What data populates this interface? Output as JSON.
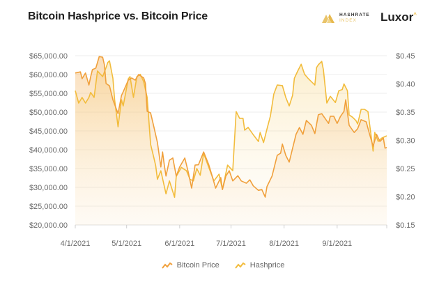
{
  "header": {
    "title": "Bitcoin Hashprice vs. Bitcoin Price",
    "logo_hashrate_line1": "HASHRATE",
    "logo_hashrate_line2": "INDEX",
    "logo_luxor": "Luxor"
  },
  "chart_data": {
    "type": "line",
    "title": "Bitcoin Hashprice vs. Bitcoin Price",
    "xlabel": "",
    "ylabel": "",
    "y2label": "",
    "x_ticks": [
      "4/1/2021",
      "5/1/2021",
      "6/1/2021",
      "7/1/2021",
      "8/1/2021",
      "9/1/2021"
    ],
    "y_ticks": [
      "$65,000.00",
      "$60,000.00",
      "$55,000.00",
      "$50,000.00",
      "$45,000.00",
      "$40,000.00",
      "$35,000.00",
      "$30,000.00",
      "$25,000.00",
      "$20,000.00"
    ],
    "y2_ticks": [
      "$0.45",
      "$0.40",
      "$0.35",
      "$0.30",
      "$0.25",
      "$0.20",
      "$0.15"
    ],
    "xlim": [
      "2021-04-01",
      "2021-09-30"
    ],
    "ylim": [
      20000,
      65000
    ],
    "y2lim": [
      0.15,
      0.45
    ],
    "grid": true,
    "legend_position": "bottom",
    "series": [
      {
        "name": "Bitcoin Price",
        "axis": "left",
        "color": "#f0a03c",
        "points": [
          [
            "2021-04-01",
            60400
          ],
          [
            "2021-04-04",
            60700
          ],
          [
            "2021-04-05",
            58900
          ],
          [
            "2021-04-07",
            60400
          ],
          [
            "2021-04-09",
            57200
          ],
          [
            "2021-04-10",
            59400
          ],
          [
            "2021-04-11",
            61300
          ],
          [
            "2021-04-13",
            61700
          ],
          [
            "2021-04-15",
            64800
          ],
          [
            "2021-04-17",
            64600
          ],
          [
            "2021-04-18",
            62600
          ],
          [
            "2021-04-19",
            57600
          ],
          [
            "2021-04-21",
            57000
          ],
          [
            "2021-04-23",
            53300
          ],
          [
            "2021-04-26",
            49600
          ],
          [
            "2021-04-28",
            54400
          ],
          [
            "2021-04-29",
            55400
          ],
          [
            "2021-05-02",
            58500
          ],
          [
            "2021-05-04",
            59100
          ],
          [
            "2021-05-06",
            58500
          ],
          [
            "2021-05-08",
            60000
          ],
          [
            "2021-05-11",
            59100
          ],
          [
            "2021-05-12",
            57600
          ],
          [
            "2021-05-13",
            50200
          ],
          [
            "2021-05-15",
            49800
          ],
          [
            "2021-05-17",
            45900
          ],
          [
            "2021-05-19",
            41900
          ],
          [
            "2021-05-21",
            35400
          ],
          [
            "2021-05-22",
            39400
          ],
          [
            "2021-05-23",
            36000
          ],
          [
            "2021-05-24",
            33000
          ],
          [
            "2021-05-26",
            37200
          ],
          [
            "2021-05-28",
            37800
          ],
          [
            "2021-05-30",
            33000
          ],
          [
            "2021-06-01",
            35400
          ],
          [
            "2021-06-04",
            37800
          ],
          [
            "2021-06-06",
            34100
          ],
          [
            "2021-06-08",
            29800
          ],
          [
            "2021-06-10",
            35900
          ],
          [
            "2021-06-12",
            36000
          ],
          [
            "2021-06-15",
            39400
          ],
          [
            "2021-06-18",
            36000
          ],
          [
            "2021-06-20",
            33000
          ],
          [
            "2021-06-22",
            29800
          ],
          [
            "2021-06-25",
            32600
          ],
          [
            "2021-06-26",
            29400
          ],
          [
            "2021-06-28",
            33000
          ],
          [
            "2021-06-30",
            34400
          ],
          [
            "2021-07-02",
            31700
          ],
          [
            "2021-07-05",
            33100
          ],
          [
            "2021-07-07",
            31700
          ],
          [
            "2021-07-10",
            31100
          ],
          [
            "2021-07-12",
            32000
          ],
          [
            "2021-07-14",
            30400
          ],
          [
            "2021-07-17",
            29200
          ],
          [
            "2021-07-19",
            29400
          ],
          [
            "2021-07-21",
            27400
          ],
          [
            "2021-07-22",
            30200
          ],
          [
            "2021-07-25",
            33000
          ],
          [
            "2021-07-28",
            38500
          ],
          [
            "2021-07-30",
            39100
          ],
          [
            "2021-07-31",
            41500
          ],
          [
            "2021-08-02",
            38500
          ],
          [
            "2021-08-04",
            36700
          ],
          [
            "2021-08-06",
            40400
          ],
          [
            "2021-08-08",
            44100
          ],
          [
            "2021-08-10",
            45900
          ],
          [
            "2021-08-12",
            44100
          ],
          [
            "2021-08-14",
            47800
          ],
          [
            "2021-08-17",
            46500
          ],
          [
            "2021-08-19",
            44300
          ],
          [
            "2021-08-21",
            49300
          ],
          [
            "2021-08-23",
            49600
          ],
          [
            "2021-08-25",
            48300
          ],
          [
            "2021-08-27",
            47000
          ],
          [
            "2021-08-28",
            48900
          ],
          [
            "2021-08-30",
            48900
          ],
          [
            "2021-09-01",
            47000
          ],
          [
            "2021-09-03",
            48900
          ],
          [
            "2021-09-05",
            50200
          ],
          [
            "2021-09-06",
            53300
          ],
          [
            "2021-09-08",
            46500
          ],
          [
            "2021-09-10",
            45200
          ],
          [
            "2021-09-11",
            44600
          ],
          [
            "2021-09-13",
            45600
          ],
          [
            "2021-09-15",
            48000
          ],
          [
            "2021-09-18",
            47400
          ],
          [
            "2021-09-20",
            44100
          ],
          [
            "2021-09-22",
            40900
          ],
          [
            "2021-09-24",
            44100
          ],
          [
            "2021-09-26",
            42200
          ],
          [
            "2021-09-28",
            43100
          ],
          [
            "2021-09-29",
            40400
          ],
          [
            "2021-09-30",
            40600
          ]
        ]
      },
      {
        "name": "Hashprice",
        "axis": "right",
        "color": "#f2bc3c",
        "points": [
          [
            "2021-04-01",
            0.388
          ],
          [
            "2021-04-03",
            0.366
          ],
          [
            "2021-04-05",
            0.376
          ],
          [
            "2021-04-07",
            0.366
          ],
          [
            "2021-04-09",
            0.376
          ],
          [
            "2021-04-10",
            0.385
          ],
          [
            "2021-04-12",
            0.376
          ],
          [
            "2021-04-14",
            0.423
          ],
          [
            "2021-04-17",
            0.413
          ],
          [
            "2021-04-19",
            0.429
          ],
          [
            "2021-04-20",
            0.438
          ],
          [
            "2021-04-21",
            0.441
          ],
          [
            "2021-04-23",
            0.41
          ],
          [
            "2021-04-24",
            0.372
          ],
          [
            "2021-04-26",
            0.324
          ],
          [
            "2021-04-28",
            0.372
          ],
          [
            "2021-04-29",
            0.361
          ],
          [
            "2021-05-02",
            0.409
          ],
          [
            "2021-05-03",
            0.413
          ],
          [
            "2021-05-05",
            0.376
          ],
          [
            "2021-05-07",
            0.413
          ],
          [
            "2021-05-09",
            0.417
          ],
          [
            "2021-05-11",
            0.404
          ],
          [
            "2021-05-13",
            0.376
          ],
          [
            "2021-05-15",
            0.293
          ],
          [
            "2021-05-17",
            0.268
          ],
          [
            "2021-05-18",
            0.255
          ],
          [
            "2021-05-19",
            0.231
          ],
          [
            "2021-05-21",
            0.246
          ],
          [
            "2021-05-24",
            0.205
          ],
          [
            "2021-05-26",
            0.228
          ],
          [
            "2021-05-29",
            0.199
          ],
          [
            "2021-05-30",
            0.236
          ],
          [
            "2021-06-02",
            0.252
          ],
          [
            "2021-06-05",
            0.246
          ],
          [
            "2021-06-07",
            0.231
          ],
          [
            "2021-06-09",
            0.228
          ],
          [
            "2021-06-11",
            0.25
          ],
          [
            "2021-06-13",
            0.238
          ],
          [
            "2021-06-15",
            0.277
          ],
          [
            "2021-06-18",
            0.252
          ],
          [
            "2021-06-21",
            0.228
          ],
          [
            "2021-06-24",
            0.24
          ],
          [
            "2021-06-26",
            0.213
          ],
          [
            "2021-06-29",
            0.256
          ],
          [
            "2021-07-02",
            0.246
          ],
          [
            "2021-07-04",
            0.351
          ],
          [
            "2021-07-06",
            0.339
          ],
          [
            "2021-07-08",
            0.339
          ],
          [
            "2021-07-09",
            0.318
          ],
          [
            "2021-07-11",
            0.323
          ],
          [
            "2021-07-14",
            0.31
          ],
          [
            "2021-07-17",
            0.298
          ],
          [
            "2021-07-18",
            0.314
          ],
          [
            "2021-07-20",
            0.296
          ],
          [
            "2021-07-22",
            0.32
          ],
          [
            "2021-07-24",
            0.343
          ],
          [
            "2021-07-26",
            0.382
          ],
          [
            "2021-07-28",
            0.398
          ],
          [
            "2021-07-31",
            0.397
          ],
          [
            "2021-08-02",
            0.376
          ],
          [
            "2021-08-04",
            0.361
          ],
          [
            "2021-08-06",
            0.38
          ],
          [
            "2021-08-07",
            0.41
          ],
          [
            "2021-08-09",
            0.423
          ],
          [
            "2021-08-11",
            0.435
          ],
          [
            "2021-08-13",
            0.417
          ],
          [
            "2021-08-15",
            0.41
          ],
          [
            "2021-08-17",
            0.404
          ],
          [
            "2021-08-19",
            0.398
          ],
          [
            "2021-08-20",
            0.429
          ],
          [
            "2021-08-21",
            0.434
          ],
          [
            "2021-08-23",
            0.44
          ],
          [
            "2021-08-24",
            0.425
          ],
          [
            "2021-08-26",
            0.366
          ],
          [
            "2021-08-28",
            0.378
          ],
          [
            "2021-08-31",
            0.367
          ],
          [
            "2021-09-02",
            0.388
          ],
          [
            "2021-09-04",
            0.39
          ],
          [
            "2021-09-05",
            0.4
          ],
          [
            "2021-09-07",
            0.388
          ],
          [
            "2021-09-08",
            0.345
          ],
          [
            "2021-09-10",
            0.341
          ],
          [
            "2021-09-12",
            0.335
          ],
          [
            "2021-09-13",
            0.329
          ],
          [
            "2021-09-15",
            0.355
          ],
          [
            "2021-09-17",
            0.355
          ],
          [
            "2021-09-19",
            0.351
          ],
          [
            "2021-09-22",
            0.281
          ],
          [
            "2021-09-23",
            0.314
          ],
          [
            "2021-09-25",
            0.298
          ],
          [
            "2021-09-27",
            0.304
          ],
          [
            "2021-09-30",
            0.308
          ]
        ]
      }
    ]
  }
}
